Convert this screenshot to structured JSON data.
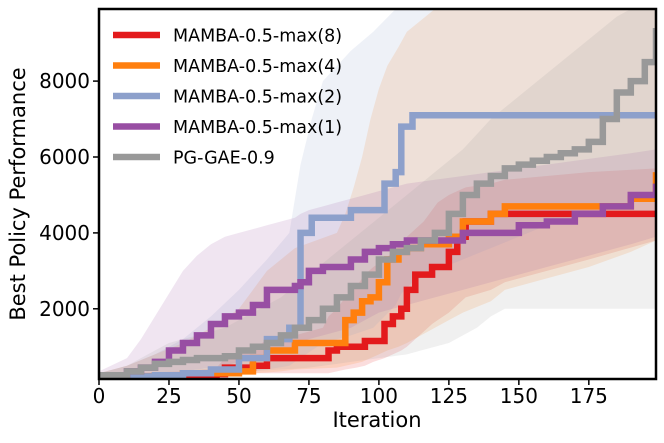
{
  "chart_data": {
    "type": "line",
    "title": "",
    "xlabel": "Iteration",
    "ylabel": "Best Policy Performance",
    "xlim": [
      0,
      199
    ],
    "ylim": [
      150,
      9900
    ],
    "xticks": [
      0,
      25,
      50,
      75,
      100,
      125,
      150,
      175
    ],
    "yticks": [
      2000,
      4000,
      6000,
      8000
    ],
    "legend_position": "top-left",
    "grid": false,
    "series": [
      {
        "name": "MAMBA-0.5-max(8)",
        "color": "#e31a1c",
        "x": [
          0,
          10,
          30,
          42,
          45,
          55,
          60,
          70,
          80,
          82,
          85,
          88,
          92,
          95,
          98,
          102,
          105,
          108,
          110,
          113,
          116,
          119,
          121,
          125,
          128,
          131,
          140,
          145,
          160,
          175,
          199
        ],
        "y": [
          200,
          220,
          250,
          280,
          450,
          500,
          700,
          700,
          700,
          900,
          1000,
          1000,
          1000,
          1150,
          1150,
          1600,
          1800,
          2000,
          2500,
          2900,
          2900,
          3100,
          3100,
          3500,
          3900,
          4300,
          4500,
          4500,
          4500,
          4500,
          4500
        ],
        "band_low": [
          200,
          200,
          200,
          200,
          300,
          300,
          300,
          300,
          300,
          300,
          350,
          400,
          450,
          500,
          600,
          700,
          800,
          900,
          1000,
          1200,
          1400,
          1600,
          1700,
          1900,
          2100,
          2300,
          2500,
          2700,
          3000,
          3300,
          3800
        ],
        "band_high": [
          250,
          300,
          350,
          450,
          700,
          900,
          1200,
          1300,
          1500,
          1800,
          2000,
          2300,
          2600,
          2900,
          3100,
          3300,
          3500,
          3700,
          3900,
          4100,
          4300,
          4600,
          4800,
          5000,
          5100,
          5200,
          5300,
          5400,
          5500,
          5600,
          5700
        ]
      },
      {
        "name": "MAMBA-0.5-max(4)",
        "color": "#ff7f0e",
        "x": [
          0,
          10,
          20,
          30,
          40,
          50,
          55,
          60,
          65,
          70,
          85,
          88,
          91,
          94,
          97,
          100,
          103,
          107,
          110,
          115,
          120,
          125,
          130,
          140,
          145,
          160,
          175,
          190,
          199
        ],
        "y": [
          200,
          220,
          250,
          300,
          300,
          350,
          700,
          900,
          900,
          1100,
          1100,
          1700,
          1900,
          2200,
          2300,
          2700,
          3300,
          3500,
          3600,
          3700,
          3700,
          3900,
          4300,
          4500,
          4700,
          4700,
          4700,
          4900,
          5600
        ],
        "band_low": [
          200,
          200,
          200,
          220,
          250,
          280,
          300,
          320,
          350,
          400,
          450,
          500,
          550,
          600,
          700,
          800,
          900,
          1000,
          1100,
          1300,
          1500,
          1700,
          1900,
          2200,
          2500,
          2800,
          3100,
          3500,
          3800
        ],
        "band_high": [
          300,
          500,
          800,
          1100,
          1500,
          2000,
          2500,
          3000,
          3300,
          3600,
          4000,
          4500,
          5200,
          6000,
          7000,
          7800,
          8400,
          8900,
          9300,
          9600,
          9900,
          9900,
          9900,
          9900,
          9900,
          9900,
          9900,
          9900,
          9900
        ]
      },
      {
        "name": "MAMBA-0.5-max(2)",
        "color": "#8da0cb",
        "x": [
          0,
          10,
          20,
          30,
          40,
          50,
          60,
          68,
          72,
          76,
          80,
          90,
          98,
          102,
          106,
          108,
          112,
          120,
          140,
          160,
          199
        ],
        "y": [
          200,
          220,
          250,
          300,
          400,
          700,
          1200,
          1500,
          4000,
          4400,
          4400,
          4600,
          4600,
          5300,
          5600,
          6800,
          7100,
          7100,
          7100,
          7100,
          7100
        ],
        "band_low": [
          200,
          200,
          220,
          250,
          300,
          350,
          400,
          500,
          700,
          900,
          1100,
          1300,
          1500,
          1800,
          2100,
          2400,
          2700,
          3000,
          3600,
          4200,
          5000
        ],
        "band_high": [
          300,
          500,
          800,
          1200,
          1800,
          2500,
          3300,
          4000,
          5800,
          7000,
          8000,
          8800,
          9300,
          9600,
          9900,
          9900,
          9900,
          9900,
          9900,
          9900,
          9900
        ]
      },
      {
        "name": "MAMBA-0.5-max(1)",
        "color": "#984ea3",
        "x": [
          0,
          10,
          15,
          20,
          25,
          30,
          35,
          40,
          45,
          50,
          55,
          60,
          65,
          70,
          72,
          75,
          80,
          85,
          90,
          95,
          100,
          105,
          110,
          120,
          130,
          140,
          150,
          160,
          170,
          180,
          190,
          199
        ],
        "y": [
          250,
          350,
          450,
          600,
          900,
          1100,
          1300,
          1600,
          1800,
          1900,
          2100,
          2500,
          2500,
          2600,
          2700,
          3000,
          3100,
          3100,
          3300,
          3500,
          3600,
          3700,
          3800,
          3800,
          4000,
          4000,
          4200,
          4300,
          4500,
          4700,
          5000,
          5300
        ],
        "band_low": [
          200,
          200,
          220,
          250,
          300,
          350,
          400,
          450,
          500,
          600,
          700,
          800,
          900,
          1000,
          1100,
          1200,
          1300,
          1400,
          1500,
          1700,
          1900,
          2000,
          2100,
          2300,
          2500,
          2700,
          2900,
          3100,
          3300,
          3500,
          3700,
          3900
        ],
        "band_high": [
          350,
          700,
          1200,
          1800,
          2400,
          3000,
          3400,
          3700,
          3900,
          4000,
          4100,
          4200,
          4300,
          4400,
          4500,
          4600,
          4700,
          4800,
          4900,
          5000,
          5100,
          5200,
          5300,
          5400,
          5500,
          5600,
          5700,
          5800,
          5900,
          6000,
          6100,
          6200
        ]
      },
      {
        "name": "PG-GAE-0.9",
        "color": "#999999",
        "x": [
          0,
          10,
          15,
          20,
          25,
          30,
          35,
          40,
          45,
          50,
          55,
          60,
          65,
          70,
          75,
          80,
          85,
          90,
          95,
          100,
          105,
          110,
          115,
          120,
          125,
          130,
          135,
          140,
          145,
          150,
          155,
          160,
          165,
          170,
          175,
          180,
          185,
          190,
          195,
          199
        ],
        "y": [
          250,
          350,
          450,
          550,
          600,
          650,
          700,
          700,
          750,
          900,
          1000,
          1100,
          1300,
          1500,
          1700,
          2000,
          2300,
          2600,
          2900,
          3300,
          3500,
          3600,
          3800,
          4000,
          4500,
          5000,
          5300,
          5500,
          5700,
          5800,
          5900,
          6000,
          6100,
          6200,
          6400,
          7000,
          7700,
          8000,
          8500,
          9400
        ],
        "band_low": [
          200,
          200,
          200,
          200,
          200,
          220,
          250,
          280,
          300,
          320,
          350,
          380,
          400,
          420,
          450,
          500,
          550,
          600,
          650,
          700,
          750,
          800,
          900,
          1000,
          1100,
          1300,
          1500,
          1800,
          2000,
          2000,
          2000,
          2000,
          2000,
          2000,
          2000,
          2000,
          2000,
          2000,
          2000,
          2000
        ],
        "band_high": [
          300,
          500,
          700,
          900,
          1100,
          1200,
          1300,
          1400,
          1500,
          1700,
          1900,
          2100,
          2300,
          2600,
          2900,
          3200,
          3500,
          3800,
          4100,
          4400,
          4700,
          5000,
          5300,
          5600,
          5900,
          6200,
          6600,
          7000,
          7300,
          7600,
          7900,
          8200,
          8500,
          8800,
          9100,
          9400,
          9700,
          9900,
          9900,
          9900
        ]
      }
    ]
  }
}
